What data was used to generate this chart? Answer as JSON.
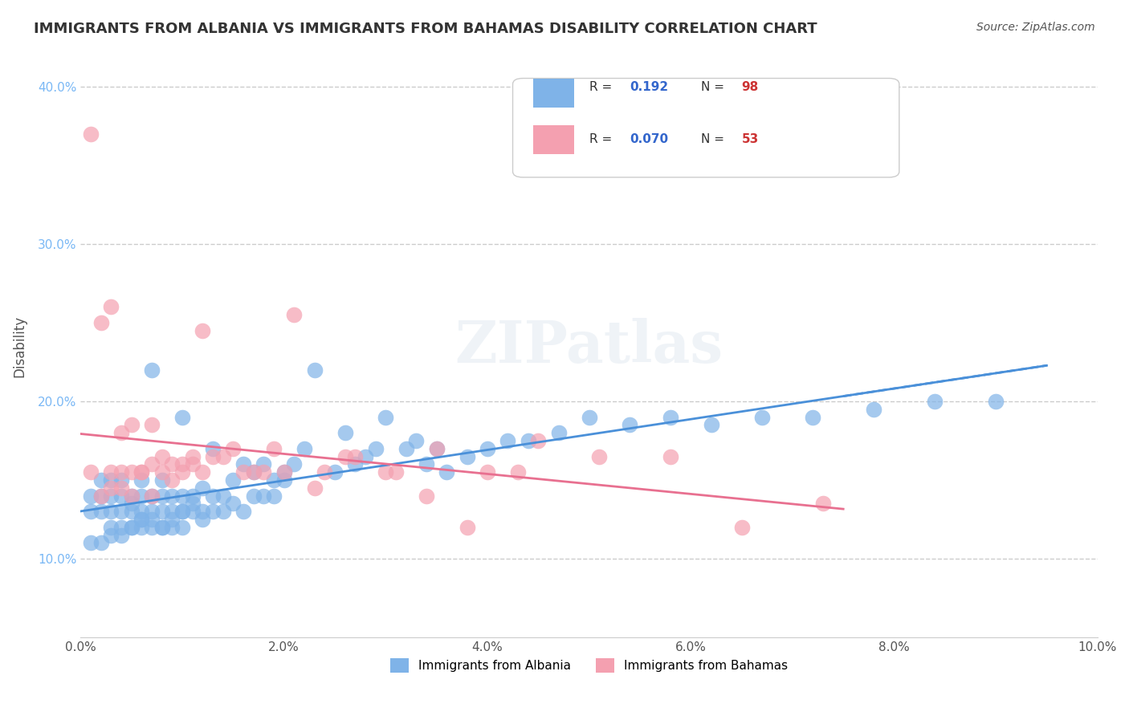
{
  "title": "IMMIGRANTS FROM ALBANIA VS IMMIGRANTS FROM BAHAMAS DISABILITY CORRELATION CHART",
  "source": "Source: ZipAtlas.com",
  "ylabel": "Disability",
  "xlabel": "",
  "xlim": [
    0.0,
    0.1
  ],
  "ylim": [
    0.05,
    0.42
  ],
  "x_ticks": [
    0.0,
    0.02,
    0.04,
    0.06,
    0.08,
    0.1
  ],
  "x_tick_labels": [
    "0.0%",
    "2.0%",
    "4.0%",
    "6.0%",
    "8.0%",
    "10.0%"
  ],
  "y_ticks": [
    0.1,
    0.2,
    0.3,
    0.4
  ],
  "y_tick_labels": [
    "10.0%",
    "20.0%",
    "30.0%",
    "40.0%"
  ],
  "grid_color": "#cccccc",
  "background_color": "#ffffff",
  "albania_color": "#7fb3e8",
  "bahamas_color": "#f4a0b0",
  "albania_line_color": "#4a90d9",
  "bahamas_line_color": "#e87090",
  "albania_R": 0.192,
  "albania_N": 98,
  "bahamas_R": 0.07,
  "bahamas_N": 53,
  "legend_R_color": "#3366cc",
  "legend_N_color": "#cc3333",
  "watermark": "ZIPatlas",
  "albania_x": [
    0.001,
    0.001,
    0.002,
    0.002,
    0.002,
    0.003,
    0.003,
    0.003,
    0.003,
    0.004,
    0.004,
    0.004,
    0.004,
    0.005,
    0.005,
    0.005,
    0.005,
    0.006,
    0.006,
    0.006,
    0.006,
    0.006,
    0.007,
    0.007,
    0.007,
    0.007,
    0.008,
    0.008,
    0.008,
    0.008,
    0.009,
    0.009,
    0.009,
    0.01,
    0.01,
    0.01,
    0.01,
    0.011,
    0.011,
    0.011,
    0.012,
    0.012,
    0.013,
    0.013,
    0.013,
    0.014,
    0.014,
    0.015,
    0.015,
    0.016,
    0.016,
    0.017,
    0.017,
    0.018,
    0.018,
    0.019,
    0.019,
    0.02,
    0.02,
    0.021,
    0.022,
    0.023,
    0.025,
    0.026,
    0.027,
    0.028,
    0.029,
    0.03,
    0.032,
    0.033,
    0.034,
    0.035,
    0.036,
    0.038,
    0.04,
    0.042,
    0.044,
    0.047,
    0.05,
    0.054,
    0.058,
    0.062,
    0.067,
    0.072,
    0.078,
    0.084,
    0.09,
    0.001,
    0.002,
    0.003,
    0.004,
    0.005,
    0.006,
    0.007,
    0.008,
    0.009,
    0.01,
    0.012
  ],
  "albania_y": [
    0.13,
    0.14,
    0.13,
    0.14,
    0.15,
    0.12,
    0.13,
    0.14,
    0.15,
    0.12,
    0.13,
    0.14,
    0.15,
    0.12,
    0.13,
    0.14,
    0.135,
    0.12,
    0.125,
    0.13,
    0.14,
    0.15,
    0.12,
    0.13,
    0.14,
    0.22,
    0.12,
    0.13,
    0.14,
    0.15,
    0.12,
    0.13,
    0.14,
    0.12,
    0.13,
    0.14,
    0.19,
    0.13,
    0.135,
    0.14,
    0.13,
    0.145,
    0.13,
    0.14,
    0.17,
    0.13,
    0.14,
    0.135,
    0.15,
    0.13,
    0.16,
    0.14,
    0.155,
    0.14,
    0.16,
    0.14,
    0.15,
    0.15,
    0.155,
    0.16,
    0.17,
    0.22,
    0.155,
    0.18,
    0.16,
    0.165,
    0.17,
    0.19,
    0.17,
    0.175,
    0.16,
    0.17,
    0.155,
    0.165,
    0.17,
    0.175,
    0.175,
    0.18,
    0.19,
    0.185,
    0.19,
    0.185,
    0.19,
    0.19,
    0.195,
    0.2,
    0.2,
    0.11,
    0.11,
    0.115,
    0.115,
    0.12,
    0.125,
    0.125,
    0.12,
    0.125,
    0.13,
    0.125
  ],
  "bahamas_x": [
    0.001,
    0.001,
    0.002,
    0.002,
    0.003,
    0.003,
    0.004,
    0.004,
    0.005,
    0.005,
    0.006,
    0.007,
    0.007,
    0.008,
    0.009,
    0.01,
    0.011,
    0.012,
    0.013,
    0.015,
    0.017,
    0.019,
    0.021,
    0.024,
    0.027,
    0.031,
    0.035,
    0.04,
    0.045,
    0.051,
    0.058,
    0.065,
    0.073,
    0.003,
    0.004,
    0.005,
    0.006,
    0.007,
    0.008,
    0.009,
    0.01,
    0.011,
    0.012,
    0.014,
    0.016,
    0.018,
    0.02,
    0.023,
    0.026,
    0.03,
    0.034,
    0.038,
    0.043
  ],
  "bahamas_y": [
    0.155,
    0.37,
    0.14,
    0.25,
    0.145,
    0.26,
    0.155,
    0.18,
    0.155,
    0.185,
    0.155,
    0.16,
    0.185,
    0.165,
    0.16,
    0.16,
    0.165,
    0.245,
    0.165,
    0.17,
    0.155,
    0.17,
    0.255,
    0.155,
    0.165,
    0.155,
    0.17,
    0.155,
    0.175,
    0.165,
    0.165,
    0.12,
    0.135,
    0.155,
    0.145,
    0.14,
    0.155,
    0.14,
    0.155,
    0.15,
    0.155,
    0.16,
    0.155,
    0.165,
    0.155,
    0.155,
    0.155,
    0.145,
    0.165,
    0.155,
    0.14,
    0.12,
    0.155
  ]
}
